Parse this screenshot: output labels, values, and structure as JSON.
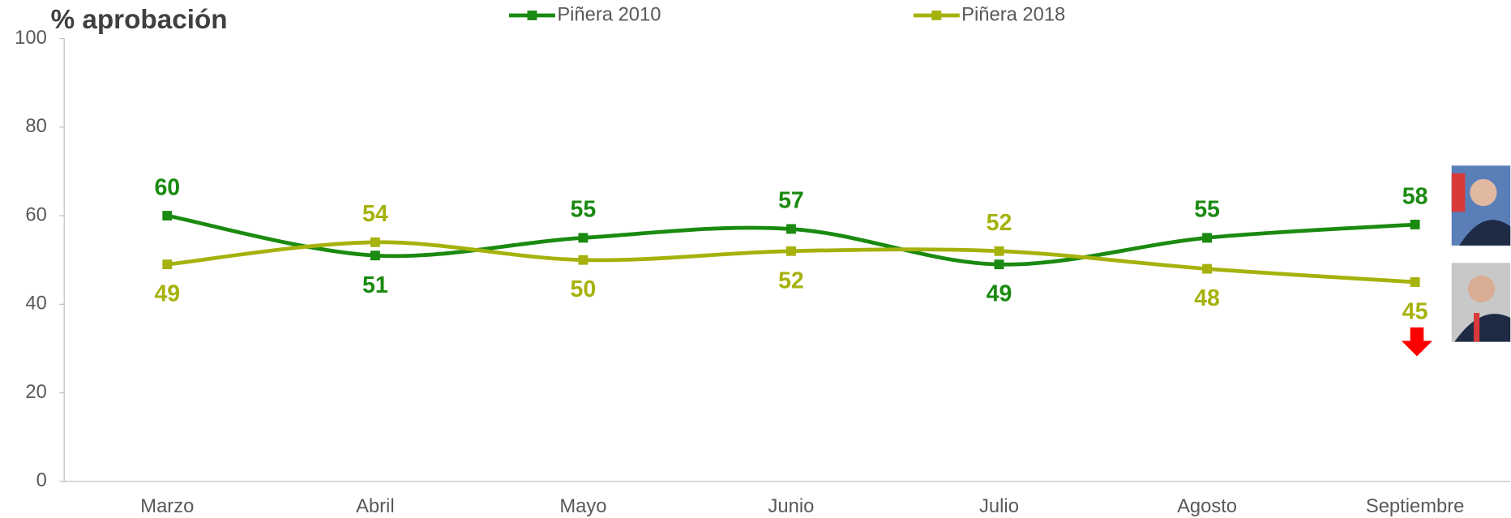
{
  "chart_data": {
    "type": "line",
    "title": "% aprobación",
    "categories": [
      "Marzo",
      "Abril",
      "Mayo",
      "Junio",
      "Julio",
      "Agosto",
      "Septiembre"
    ],
    "series": [
      {
        "name": "Piñera 2010",
        "color": "#1a8a10",
        "values": [
          60,
          51,
          55,
          57,
          49,
          55,
          58
        ]
      },
      {
        "name": "Piñera 2018",
        "color": "#a6b20c",
        "values": [
          49,
          54,
          50,
          52,
          52,
          48,
          45
        ]
      }
    ],
    "ylim": [
      0,
      100
    ],
    "yticks": [
      0,
      20,
      40,
      60,
      80,
      100
    ],
    "grid": false
  }
}
